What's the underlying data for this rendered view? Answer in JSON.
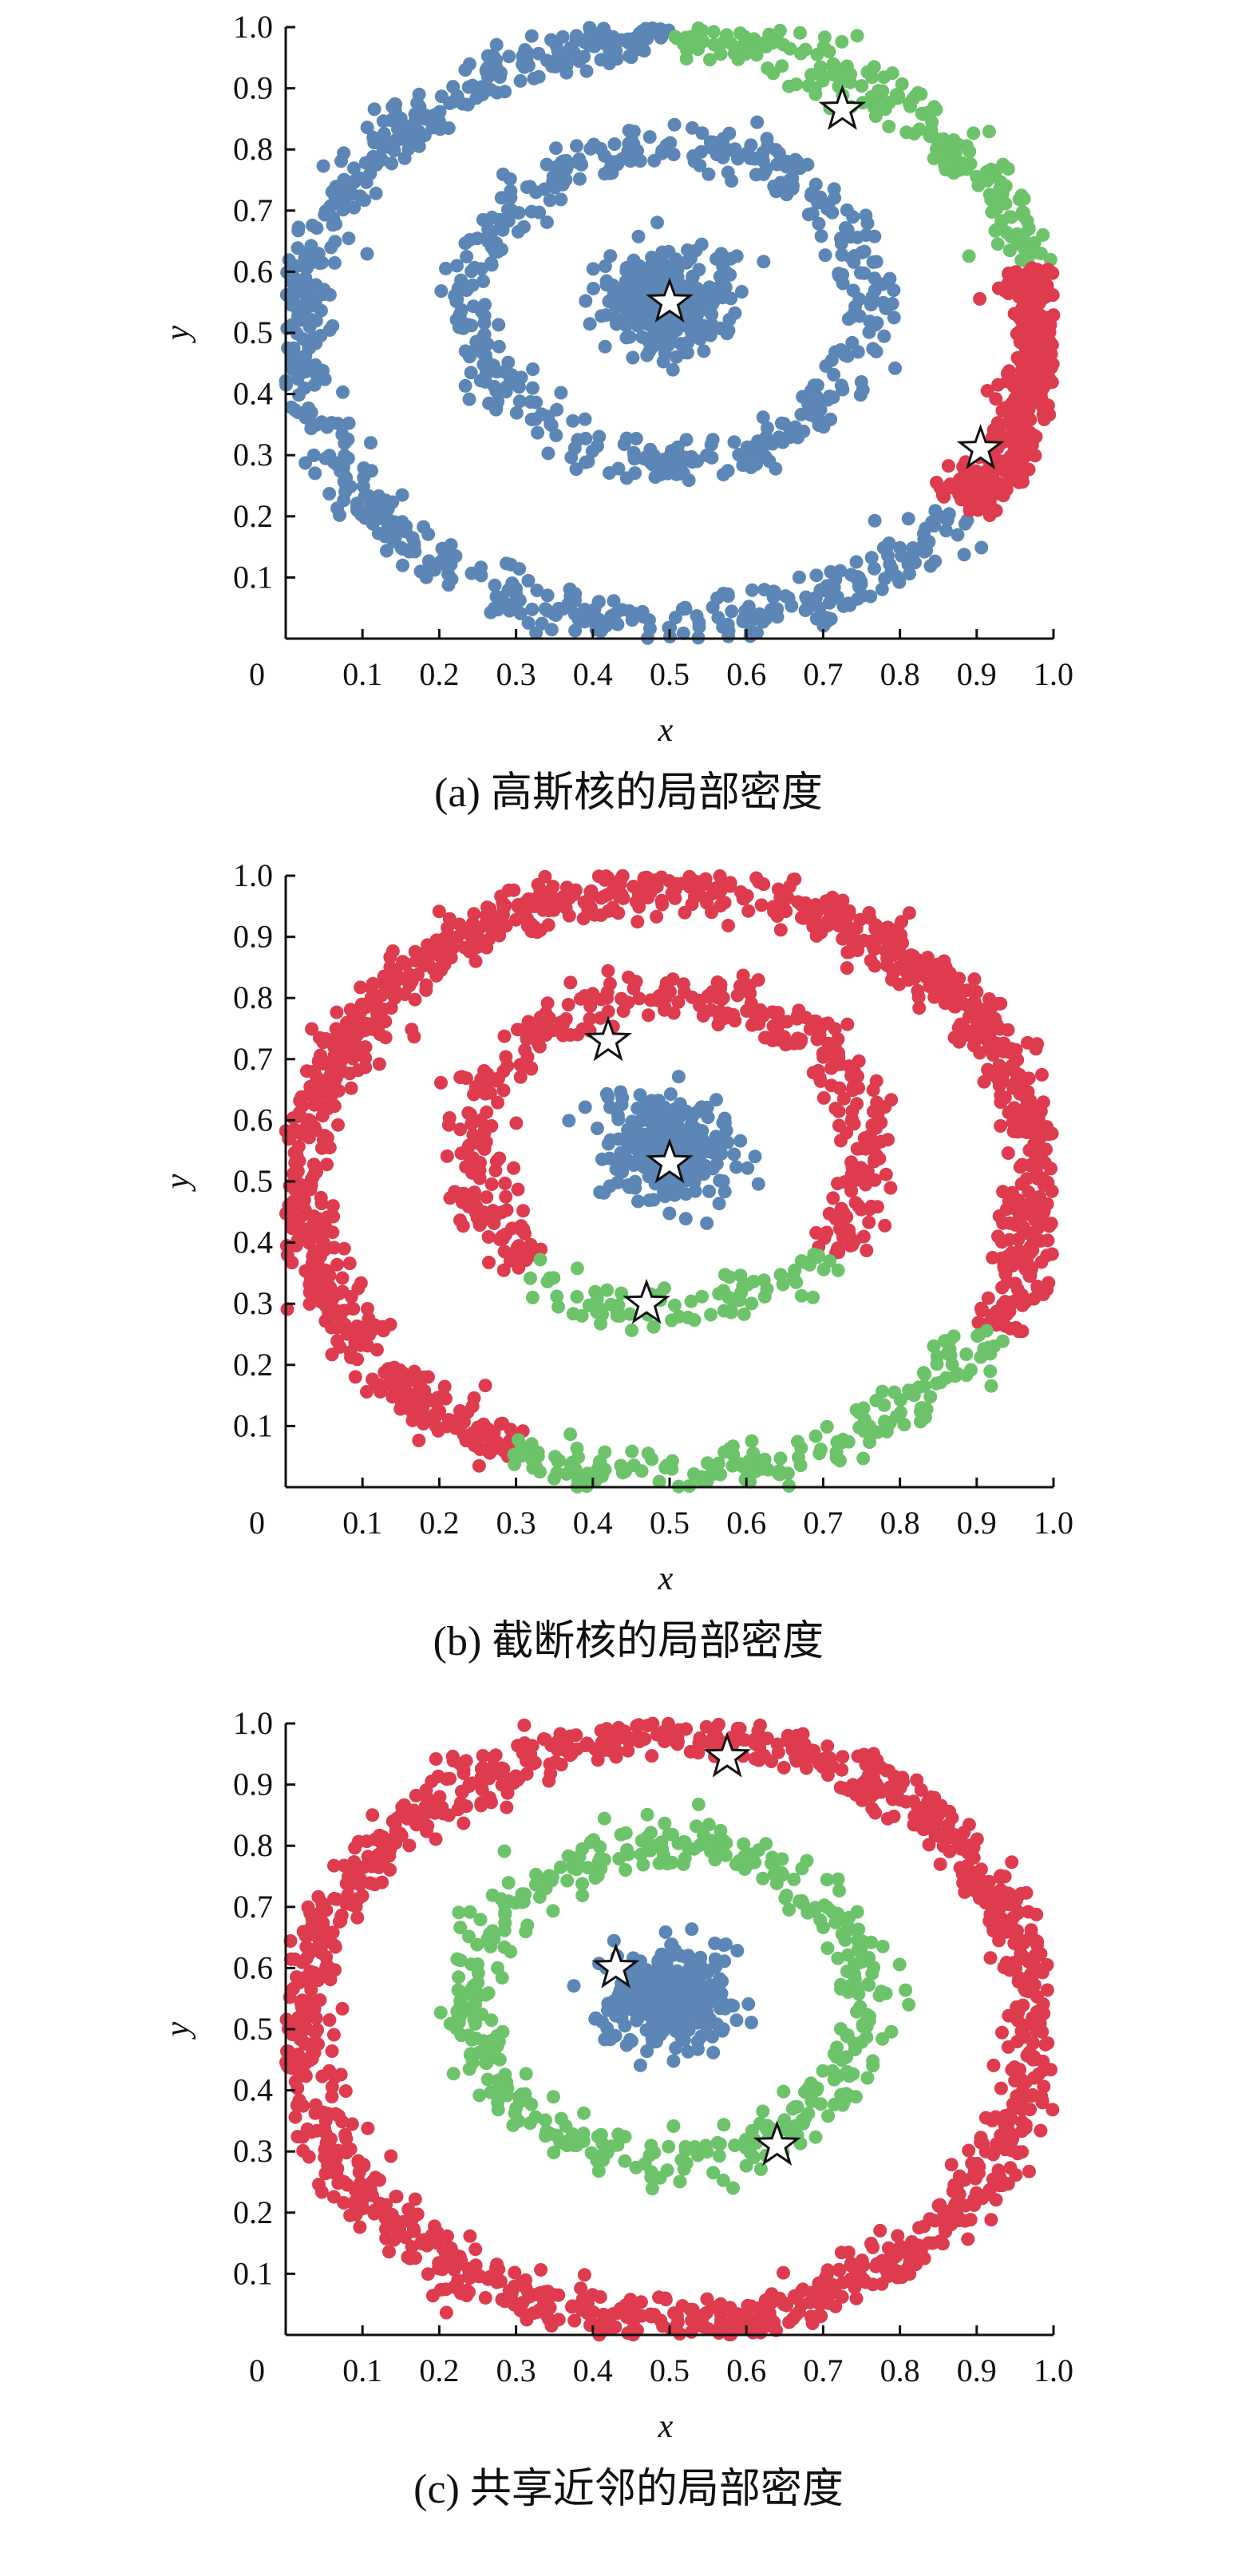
{
  "figure": {
    "panels": [
      {
        "caption": "(a) 高斯核的局部密度"
      },
      {
        "caption": "(b) 截断核的局部密度"
      },
      {
        "caption": "(c) 共享近邻的局部密度"
      }
    ]
  },
  "colors": {
    "blue": "#5b86b5",
    "green": "#6cc36a",
    "red": "#de3b4f"
  },
  "chart_data": [
    {
      "type": "scatter",
      "title": "",
      "xlabel": "x",
      "ylabel": "y",
      "xlim": [
        0,
        1
      ],
      "ylim": [
        0,
        1
      ],
      "xticks": [
        "0",
        "0.1",
        "0.2",
        "0.3",
        "0.4",
        "0.5",
        "0.6",
        "0.7",
        "0.8",
        "0.9",
        "1.0"
      ],
      "yticks": [
        "0.1",
        "0.2",
        "0.3",
        "0.4",
        "0.5",
        "0.6",
        "0.7",
        "0.8",
        "0.9",
        "1.0"
      ],
      "clusters": [
        {
          "shape": "blob",
          "center": [
            0.5,
            0.55
          ],
          "radius": 0.08,
          "color": "blue",
          "n": 320
        },
        {
          "shape": "ring",
          "center": [
            0.5,
            0.55
          ],
          "radius": 0.26,
          "color": "blue",
          "n": 450
        },
        {
          "shape": "ring-arc",
          "center": [
            0.5,
            0.5
          ],
          "radius": 0.48,
          "from_deg": 90,
          "to_deg": 323,
          "color": "blue",
          "n": 650
        },
        {
          "shape": "ring-arc",
          "center": [
            0.5,
            0.5
          ],
          "radius": 0.48,
          "from_deg": 13,
          "to_deg": 90,
          "color": "green",
          "n": 210
        },
        {
          "shape": "ring-arc",
          "center": [
            0.5,
            0.5
          ],
          "radius": 0.48,
          "from_deg": -37,
          "to_deg": 13,
          "color": "red",
          "n": 380
        }
      ],
      "centers": [
        [
          0.5,
          0.55
        ],
        [
          0.725,
          0.865
        ],
        [
          0.905,
          0.31
        ]
      ]
    },
    {
      "type": "scatter",
      "title": "",
      "xlabel": "x",
      "ylabel": "y",
      "xlim": [
        0,
        1
      ],
      "ylim": [
        0,
        1
      ],
      "xticks": [
        "0",
        "0.1",
        "0.2",
        "0.3",
        "0.4",
        "0.5",
        "0.6",
        "0.7",
        "0.8",
        "0.9",
        "1.0"
      ],
      "yticks": [
        "0.1",
        "0.2",
        "0.3",
        "0.4",
        "0.5",
        "0.6",
        "0.7",
        "0.8",
        "0.9",
        "1.0"
      ],
      "clusters": [
        {
          "shape": "blob",
          "center": [
            0.5,
            0.55
          ],
          "radius": 0.08,
          "color": "blue",
          "n": 320
        },
        {
          "shape": "ring-arc",
          "center": [
            0.5,
            0.55
          ],
          "radius": 0.26,
          "from_deg": -40,
          "to_deg": 225,
          "color": "red",
          "n": 390
        },
        {
          "shape": "ring-arc",
          "center": [
            0.5,
            0.55
          ],
          "radius": 0.26,
          "from_deg": 225,
          "to_deg": 320,
          "color": "green",
          "n": 80
        },
        {
          "shape": "ring-arc",
          "center": [
            0.5,
            0.5
          ],
          "radius": 0.48,
          "from_deg": -30,
          "to_deg": 245,
          "color": "red",
          "n": 1150
        },
        {
          "shape": "ring-arc",
          "center": [
            0.5,
            0.5
          ],
          "radius": 0.48,
          "from_deg": 245,
          "to_deg": 330,
          "color": "green",
          "n": 180
        }
      ],
      "centers": [
        [
          0.5,
          0.53
        ],
        [
          0.42,
          0.73
        ],
        [
          0.47,
          0.3
        ]
      ]
    },
    {
      "type": "scatter",
      "title": "",
      "xlabel": "x",
      "ylabel": "y",
      "xlim": [
        0,
        1
      ],
      "ylim": [
        0,
        1
      ],
      "xticks": [
        "0",
        "0.1",
        "0.2",
        "0.3",
        "0.4",
        "0.5",
        "0.6",
        "0.7",
        "0.8",
        "0.9",
        "1.0"
      ],
      "yticks": [
        "0.1",
        "0.2",
        "0.3",
        "0.4",
        "0.5",
        "0.6",
        "0.7",
        "0.8",
        "0.9",
        "1.0"
      ],
      "clusters": [
        {
          "shape": "blob",
          "center": [
            0.5,
            0.55
          ],
          "radius": 0.08,
          "color": "blue",
          "n": 320
        },
        {
          "shape": "ring",
          "center": [
            0.5,
            0.55
          ],
          "radius": 0.26,
          "color": "green",
          "n": 450
        },
        {
          "shape": "ring",
          "center": [
            0.5,
            0.5
          ],
          "radius": 0.48,
          "color": "red",
          "n": 1250
        }
      ],
      "centers": [
        [
          0.43,
          0.6
        ],
        [
          0.575,
          0.945
        ],
        [
          0.64,
          0.31
        ]
      ]
    }
  ]
}
